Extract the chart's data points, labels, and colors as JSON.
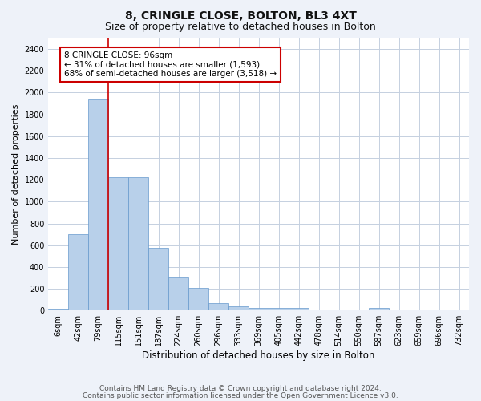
{
  "title1": "8, CRINGLE CLOSE, BOLTON, BL3 4XT",
  "title2": "Size of property relative to detached houses in Bolton",
  "xlabel": "Distribution of detached houses by size in Bolton",
  "ylabel": "Number of detached properties",
  "footer1": "Contains HM Land Registry data © Crown copyright and database right 2024.",
  "footer2": "Contains public sector information licensed under the Open Government Licence v3.0.",
  "bin_labels": [
    "6sqm",
    "42sqm",
    "79sqm",
    "115sqm",
    "151sqm",
    "187sqm",
    "224sqm",
    "260sqm",
    "296sqm",
    "333sqm",
    "369sqm",
    "405sqm",
    "442sqm",
    "478sqm",
    "514sqm",
    "550sqm",
    "587sqm",
    "623sqm",
    "659sqm",
    "696sqm",
    "732sqm"
  ],
  "bar_values": [
    15,
    700,
    1940,
    1220,
    1220,
    575,
    305,
    205,
    65,
    35,
    25,
    25,
    25,
    0,
    0,
    0,
    20,
    0,
    0,
    0,
    0
  ],
  "bar_color": "#b8d0ea",
  "bar_edge_color": "#6699cc",
  "bar_edge_width": 0.5,
  "vline_x_index": 2,
  "vline_color": "#cc0000",
  "annotation_text": "8 CRINGLE CLOSE: 96sqm\n← 31% of detached houses are smaller (1,593)\n68% of semi-detached houses are larger (3,518) →",
  "annotation_box_color": "#ffffff",
  "annotation_box_edge": "#cc0000",
  "ylim": [
    0,
    2500
  ],
  "yticks": [
    0,
    200,
    400,
    600,
    800,
    1000,
    1200,
    1400,
    1600,
    1800,
    2000,
    2200,
    2400
  ],
  "bg_color": "#eef2f9",
  "plot_bg_color": "#ffffff",
  "grid_color": "#c5d0e0",
  "title1_fontsize": 10,
  "title2_fontsize": 9,
  "xlabel_fontsize": 8.5,
  "ylabel_fontsize": 8,
  "footer_fontsize": 6.5,
  "tick_fontsize": 7,
  "annot_fontsize": 7.5
}
